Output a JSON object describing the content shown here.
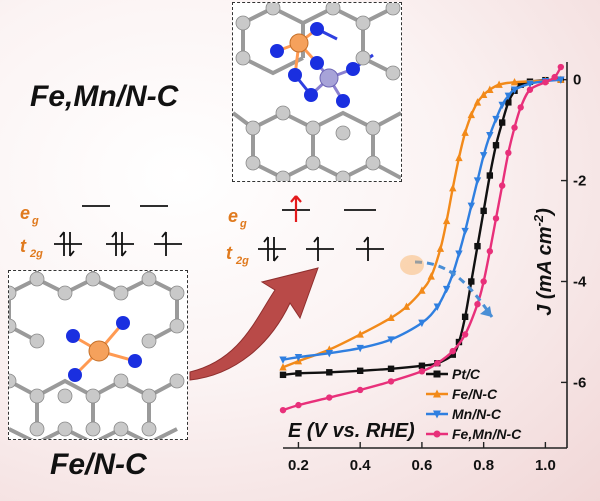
{
  "labels": {
    "top_material": "Fe,Mn/N-C",
    "bottom_material": "Fe/N-C",
    "orbital_eg": "e",
    "orbital_eg_sub": "g",
    "orbital_t2g": "t",
    "orbital_t2g_sub": "2g"
  },
  "colors": {
    "orbital_label": "#e07a1e",
    "fe_atom": "#f5a15c",
    "mn_atom": "#a7a3d8",
    "n_atom": "#1a2fe0",
    "c_atom": "#bfbfbf",
    "arrow_big": "#b94a48",
    "spin_up_highlight": "#e31a1c"
  },
  "chart_data": {
    "type": "line",
    "xlabel": "E (V vs. RHE)",
    "ylabel_main": "J (mA cm",
    "ylabel_sup": "-2",
    "ylabel_close": ")",
    "xlim": [
      0.15,
      1.07
    ],
    "ylim": [
      -7.3,
      0.35
    ],
    "xticks": [
      0.2,
      0.4,
      0.6,
      0.8,
      1.0
    ],
    "xtick_labels": [
      "0.2",
      "0.4",
      "0.6",
      "0.8",
      "1.0"
    ],
    "yticks": [
      0,
      -2,
      -4,
      -6
    ],
    "ytick_labels": [
      "0",
      "-2",
      "-4",
      "-6"
    ],
    "legend_position": "bottom-right",
    "series": [
      {
        "name": "Pt/C",
        "color": "#111111",
        "marker": "square",
        "x": [
          0.15,
          0.2,
          0.3,
          0.4,
          0.5,
          0.6,
          0.65,
          0.7,
          0.72,
          0.74,
          0.76,
          0.78,
          0.8,
          0.82,
          0.84,
          0.86,
          0.88,
          0.9,
          0.92,
          0.95,
          1.0,
          1.05
        ],
        "y": [
          -5.85,
          -5.82,
          -5.8,
          -5.77,
          -5.73,
          -5.67,
          -5.62,
          -5.45,
          -5.2,
          -4.7,
          -4.0,
          -3.3,
          -2.6,
          -1.9,
          -1.3,
          -0.85,
          -0.45,
          -0.22,
          -0.1,
          -0.04,
          -0.01,
          0.0
        ]
      },
      {
        "name": "Fe/N-C",
        "color": "#f28a1a",
        "marker": "triangle-up",
        "x": [
          0.15,
          0.2,
          0.3,
          0.4,
          0.5,
          0.55,
          0.6,
          0.63,
          0.66,
          0.68,
          0.7,
          0.72,
          0.74,
          0.76,
          0.78,
          0.8,
          0.82,
          0.85,
          0.9,
          1.0,
          1.05
        ],
        "y": [
          -5.7,
          -5.58,
          -5.35,
          -5.05,
          -4.72,
          -4.5,
          -4.18,
          -3.9,
          -3.35,
          -2.8,
          -2.15,
          -1.55,
          -1.05,
          -0.7,
          -0.45,
          -0.3,
          -0.2,
          -0.1,
          -0.05,
          -0.02,
          0.0
        ]
      },
      {
        "name": "Mn/N-C",
        "color": "#2f7fe0",
        "marker": "triangle-down",
        "x": [
          0.15,
          0.2,
          0.3,
          0.4,
          0.5,
          0.6,
          0.65,
          0.68,
          0.7,
          0.72,
          0.74,
          0.76,
          0.78,
          0.8,
          0.82,
          0.84,
          0.86,
          0.88,
          0.9,
          0.95,
          1.0,
          1.05
        ],
        "y": [
          -5.55,
          -5.5,
          -5.42,
          -5.32,
          -5.15,
          -4.82,
          -4.5,
          -4.15,
          -3.85,
          -3.45,
          -3.0,
          -2.5,
          -2.0,
          -1.5,
          -1.1,
          -0.78,
          -0.5,
          -0.32,
          -0.2,
          -0.08,
          -0.03,
          0.0
        ]
      },
      {
        "name": "Fe,Mn/N-C",
        "color": "#e8307a",
        "marker": "circle",
        "x": [
          0.15,
          0.2,
          0.3,
          0.4,
          0.5,
          0.6,
          0.65,
          0.7,
          0.74,
          0.78,
          0.8,
          0.82,
          0.84,
          0.86,
          0.88,
          0.9,
          0.92,
          0.95,
          1.0,
          1.03,
          1.05
        ],
        "y": [
          -6.55,
          -6.45,
          -6.3,
          -6.15,
          -5.98,
          -5.78,
          -5.62,
          -5.38,
          -5.05,
          -4.45,
          -4.0,
          -3.4,
          -2.75,
          -2.1,
          -1.45,
          -0.95,
          -0.55,
          -0.2,
          -0.05,
          0.05,
          0.25
        ]
      }
    ]
  }
}
